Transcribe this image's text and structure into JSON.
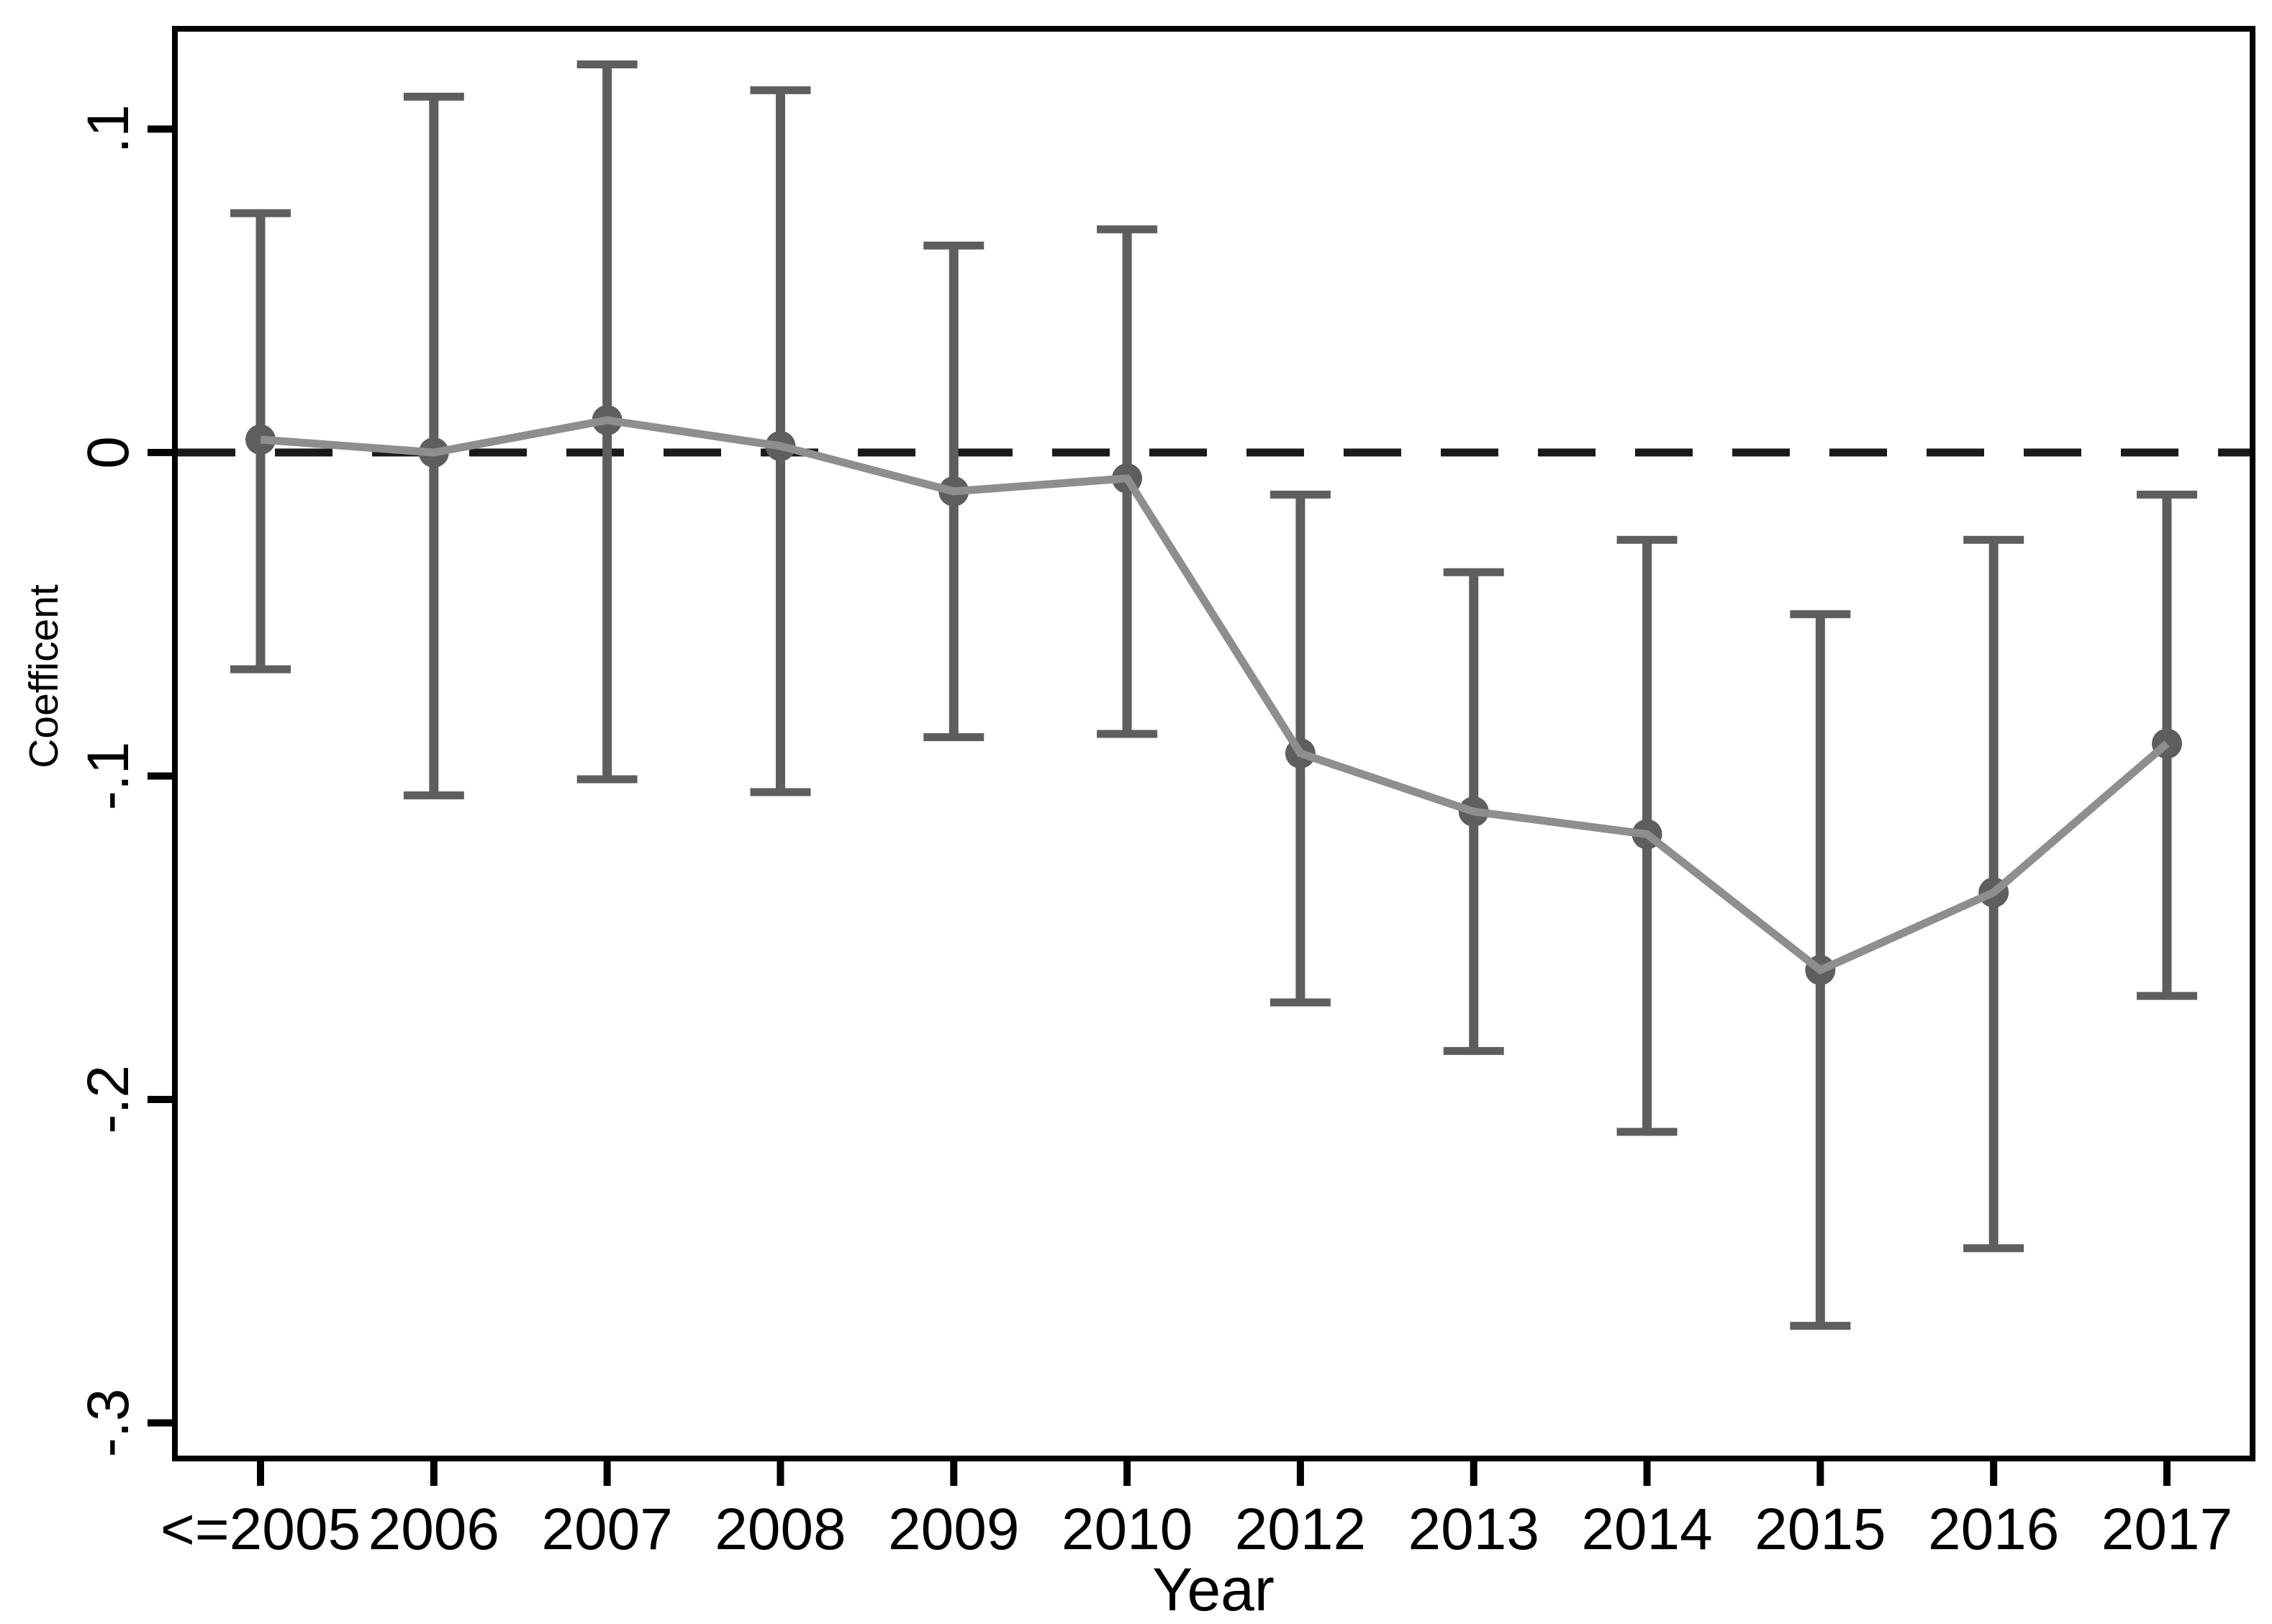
{
  "chart_data": {
    "type": "line",
    "variant": "coefficient_plot_with_error_bars",
    "title": "",
    "xlabel": "Year",
    "ylabel": "Coefficent",
    "categories": [
      "<=2005",
      "2006",
      "2007",
      "2008",
      "2009",
      "2010",
      "2012",
      "2013",
      "2014",
      "2015",
      "2016",
      "2017"
    ],
    "series": [
      {
        "name": "Coefficient",
        "values": [
          0.004,
          0.0,
          0.01,
          0.002,
          -0.012,
          -0.008,
          -0.093,
          -0.111,
          -0.118,
          -0.16,
          -0.136,
          -0.09
        ],
        "ci_upper": [
          0.074,
          0.11,
          0.12,
          0.112,
          0.064,
          0.069,
          -0.013,
          -0.037,
          -0.027,
          -0.05,
          -0.027,
          -0.013
        ],
        "ci_lower": [
          -0.067,
          -0.106,
          -0.101,
          -0.105,
          -0.088,
          -0.087,
          -0.17,
          -0.185,
          -0.21,
          -0.27,
          -0.246,
          -0.168
        ]
      }
    ],
    "reference_line": {
      "value": 0,
      "style": "dashed"
    },
    "y_ticks": {
      "values": [
        0.1,
        0,
        -0.1,
        -0.2,
        -0.3
      ],
      "labels": [
        ".1",
        "0",
        "-.1",
        "-.2",
        "-.3"
      ]
    },
    "ylim": [
      -0.311,
      0.131
    ],
    "grid": false,
    "legend": "none",
    "marker": "filled-circle",
    "colors": {
      "background": "#ffffff",
      "axis": "#000000",
      "text": "#000000",
      "reference_line": "#1a1a1a",
      "marker": "#5e5e5e",
      "error_bar": "#5e5e5e",
      "trend_line": "#8e8e8e"
    }
  }
}
